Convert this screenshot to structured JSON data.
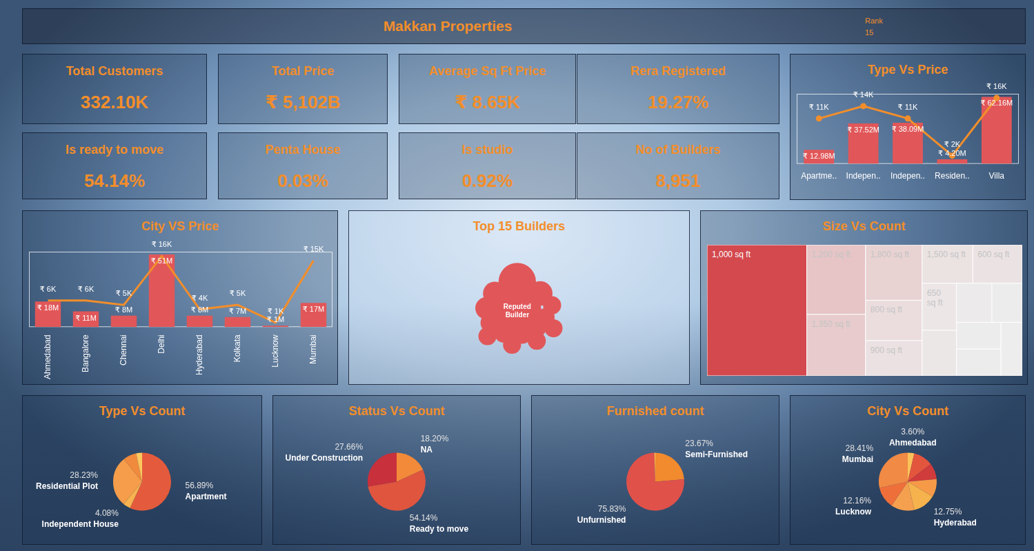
{
  "header": {
    "title": "Makkan Properties",
    "rank_label": "Rank",
    "rank": 15
  },
  "kpis": [
    {
      "label": "Total Customers",
      "value": "332.10K"
    },
    {
      "label": "Total Price",
      "value": "₹ 5,102B"
    },
    {
      "label": "Average Sq Ft Price",
      "value": "₹ 8.65K"
    },
    {
      "label": "Rera Registered",
      "value": "19.27%"
    },
    {
      "label": "Is ready to move",
      "value": "54.14%"
    },
    {
      "label": "Penta House",
      "value": "0.03%"
    },
    {
      "label": "Is studio",
      "value": "0.92%"
    },
    {
      "label": "No of Builders",
      "value": "8,951"
    }
  ],
  "chart_data": [
    {
      "type": "bar",
      "title": "Type Vs Price",
      "categories": [
        "Apartme..",
        "Indepen..",
        "Indepen..",
        "Residen..",
        "Villa"
      ],
      "series": [
        {
          "type": "bar",
          "color": "#e15759",
          "values": [
            12.98,
            37.52,
            38.09,
            4.2,
            62.16
          ],
          "value_labels": [
            "₹ 12.98M",
            "₹ 37.52M",
            "₹ 38.09M",
            "₹ 4.20M",
            "₹ 62.16M"
          ]
        },
        {
          "type": "line",
          "axis": "y2",
          "color": "#f28e2b",
          "marker": "circle",
          "values": [
            11,
            14,
            11,
            2,
            16
          ],
          "value_labels": [
            "₹ 11K",
            "₹ 14K",
            "₹ 11K",
            "₹ 2K",
            "₹ 16K"
          ]
        }
      ],
      "ylim": [
        0,
        65
      ],
      "y2lim": [
        0,
        17
      ],
      "tick_labels": "x",
      "grid": false,
      "data_labels": true
    },
    {
      "type": "bar",
      "title": "City VS Price",
      "categories": [
        "Ahmedabad",
        "Bangalore",
        "Chennai",
        "Delhi",
        "Hyderabad",
        "Kolkata",
        "Lucknow",
        "Mumbai"
      ],
      "series": [
        {
          "type": "bar",
          "color": "#e15759",
          "values": [
            18,
            11,
            8,
            51,
            8,
            7,
            1,
            17
          ],
          "value_labels": [
            "₹ 18M",
            "₹ 11M",
            "₹ 8M",
            "₹ 51M",
            "₹ 8M",
            "₹ 7M",
            "₹ 1M",
            "₹ 17M"
          ]
        },
        {
          "type": "line",
          "axis": "y2",
          "color": "#f28e2b",
          "marker": "none",
          "values": [
            6,
            6,
            5,
            16,
            4,
            5,
            1,
            15
          ],
          "value_labels": [
            "₹ 6K",
            "₹ 6K",
            "₹ 5K",
            "₹ 16K",
            "₹ 4K",
            "₹ 5K",
            "₹ 1K",
            "₹ 15K"
          ]
        }
      ],
      "ylim": [
        0,
        53
      ],
      "y2lim": [
        0,
        17
      ],
      "tick_labels": "x",
      "grid": false,
      "data_labels": true
    },
    {
      "type": "bubble",
      "title": "Top 15 Builders",
      "categories": [
        "Reputed Builder",
        null,
        null,
        null,
        null,
        null,
        null,
        null,
        null,
        null,
        null,
        null,
        null,
        null,
        null
      ],
      "values": [
        100,
        60,
        26,
        24,
        21,
        18,
        18,
        16,
        14,
        14,
        14,
        14,
        14,
        14,
        14
      ],
      "color": "#e15759"
    },
    {
      "type": "treemap",
      "title": "Size Vs Count",
      "categories": [
        "1,000 sq ft",
        "1,200 sq ft",
        "1,350 sq ft",
        "1,800 sq ft",
        "800 sq ft",
        "900 sq ft",
        "1,500 sq ft",
        "600 sq ft",
        "650 sq ft",
        null,
        null,
        null,
        null,
        null,
        null
      ],
      "values": [
        27500,
        8600,
        7600,
        6600,
        4800,
        4200,
        4100,
        4000,
        3400,
        3300,
        2900,
        2500,
        2500,
        2500,
        2400
      ],
      "color": "#d3494e"
    },
    {
      "type": "pie",
      "title": "Type Vs Count",
      "categories": [
        "Apartment",
        "Independent House",
        "Residential Plot",
        null,
        null
      ],
      "values": [
        56.89,
        4.08,
        28.23,
        7.5,
        3.3
      ],
      "value_labels": [
        "56.89%",
        "4.08%",
        "28.23%",
        null,
        null
      ],
      "colors": [
        "#e35b3c",
        "#f7b34f",
        "#f59d4a",
        "#f08a3c",
        "#fbc75e"
      ],
      "data_labels": true
    },
    {
      "type": "pie",
      "title": "Status Vs Count",
      "categories": [
        "NA",
        "Ready to move",
        "Under Construction"
      ],
      "values": [
        18.2,
        54.14,
        27.66
      ],
      "value_labels": [
        "18.20%",
        "54.14%",
        "27.66%"
      ],
      "colors": [
        "#f28a3a",
        "#e0553e",
        "#c8303b"
      ],
      "data_labels": true
    },
    {
      "type": "pie",
      "title": "Furnished count",
      "categories": [
        "Semi-Furnished",
        "Unfurnished",
        null
      ],
      "values": [
        23.67,
        75.83,
        0.5
      ],
      "value_labels": [
        "23.67%",
        "75.83%",
        null
      ],
      "colors": [
        "#f28a2e",
        "#e0514a",
        "#f7c35a"
      ],
      "data_labels": true
    },
    {
      "type": "pie",
      "title": "City Vs Count",
      "categories": [
        "Ahmedabad",
        null,
        null,
        null,
        "Hyderabad",
        null,
        "Lucknow",
        "Mumbai"
      ],
      "values": [
        3.6,
        11,
        9,
        10,
        12.75,
        13.08,
        12.16,
        28.41
      ],
      "value_labels": [
        "3.60%",
        null,
        null,
        null,
        "12.75%",
        null,
        "12.16%",
        "28.41%"
      ],
      "colors": [
        "#fbc25a",
        "#e4553d",
        "#d03b3c",
        "#f79a48",
        "#f6b24c",
        "#f4a04f",
        "#ef6f3a",
        "#f08a45"
      ],
      "data_labels": true
    }
  ]
}
